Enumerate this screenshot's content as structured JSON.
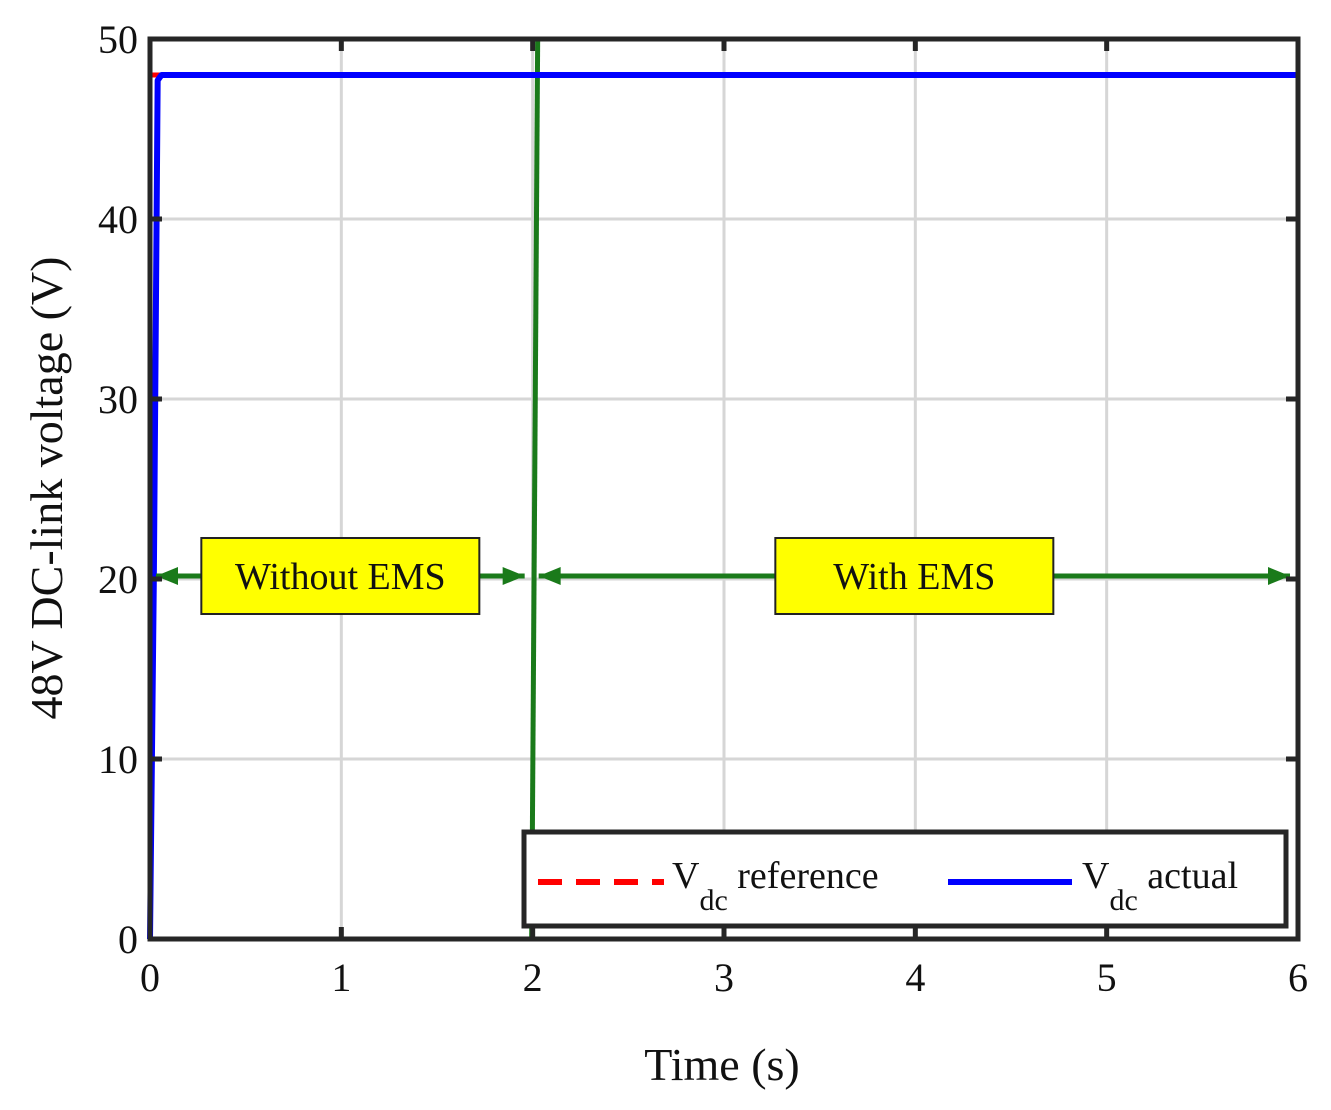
{
  "chart_data": {
    "type": "line",
    "title": "",
    "xlabel": "Time (s)",
    "ylabel": "48V DC-link voltage (V)",
    "xlim": [
      0,
      6
    ],
    "ylim": [
      0,
      50
    ],
    "xticks": [
      0,
      1,
      2,
      3,
      4,
      5,
      6
    ],
    "yticks": [
      0,
      10,
      20,
      30,
      40,
      50
    ],
    "grid": true,
    "legend_position": "bottom-right",
    "series": [
      {
        "name": "V_dc reference",
        "legend_main": "V",
        "legend_sub": "dc",
        "legend_rest": "reference",
        "color": "#ff0000",
        "style": "dashed",
        "x": [
          0,
          6
        ],
        "y": [
          48,
          48
        ]
      },
      {
        "name": "V_dc actual",
        "legend_main": "V",
        "legend_sub": "dc",
        "legend_rest": "actual",
        "color": "#0000ff",
        "style": "solid",
        "x": [
          0,
          0.02,
          0.04,
          0.06,
          6
        ],
        "y": [
          0,
          20,
          47.7,
          48,
          48
        ]
      }
    ],
    "vertical_line": {
      "x": 2,
      "color": "#1a7a1a"
    },
    "annotations": [
      {
        "text": "Without EMS",
        "x_from": 0,
        "x_to": 2,
        "y": 20
      },
      {
        "text": "With EMS",
        "x_from": 2,
        "x_to": 6,
        "y": 20
      }
    ],
    "annotation_color": "#1a7a1a",
    "annotation_box_color": "#ffff00"
  }
}
